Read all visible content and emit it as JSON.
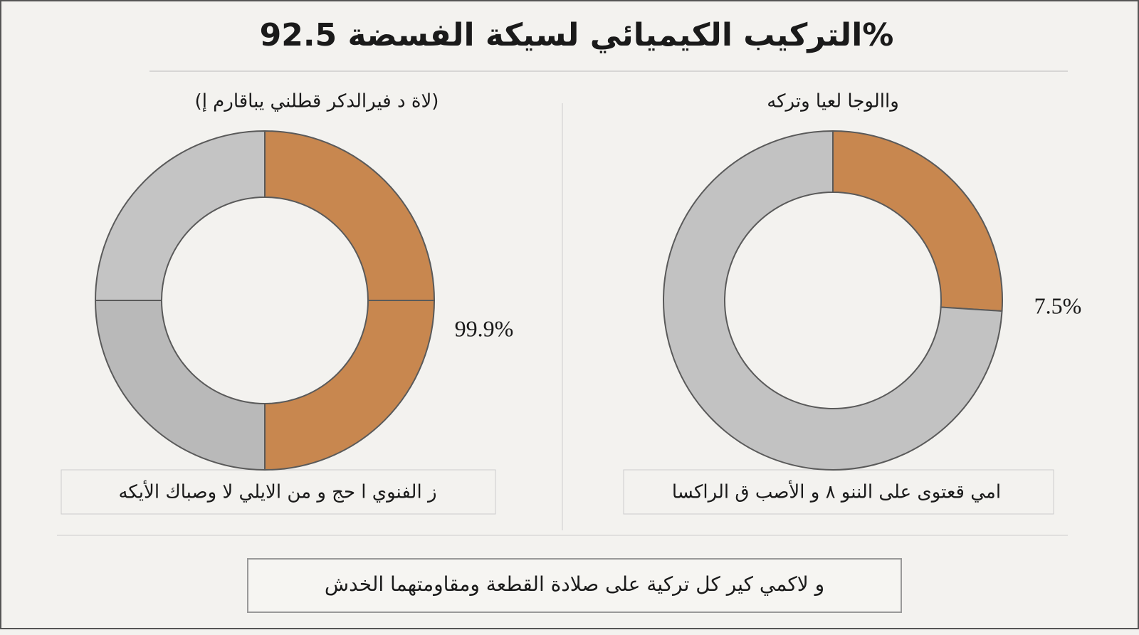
{
  "title": "التركيب الكيميائي لسيكة الفسضة 92.5%",
  "footer": "و لاكمي كير كل تركية على صلادة القطعة ومقاومتهما الخدش",
  "chart_data": [
    {
      "type": "donut",
      "subtitle": "(لاة د فيرالدكر قطلني يباقارم إ)",
      "annotation": "99.9%",
      "caption": "ز الفنوي ا حج و من الايلي لا وصباك الأيكه",
      "values": [
        25,
        25,
        25,
        25
      ],
      "colors": [
        "#c8874f",
        "#c8874f",
        "#b9b9b9",
        "#c4c4c4"
      ]
    },
    {
      "type": "donut",
      "subtitle": "واالوجا لعيا وتركه",
      "annotation": "7.5%",
      "caption": "امي قعتوى على الننو ٨ و الأصب ق الراكسا",
      "values": [
        26,
        74
      ],
      "colors": [
        "#c8874f",
        "#c2c2c2"
      ]
    }
  ]
}
